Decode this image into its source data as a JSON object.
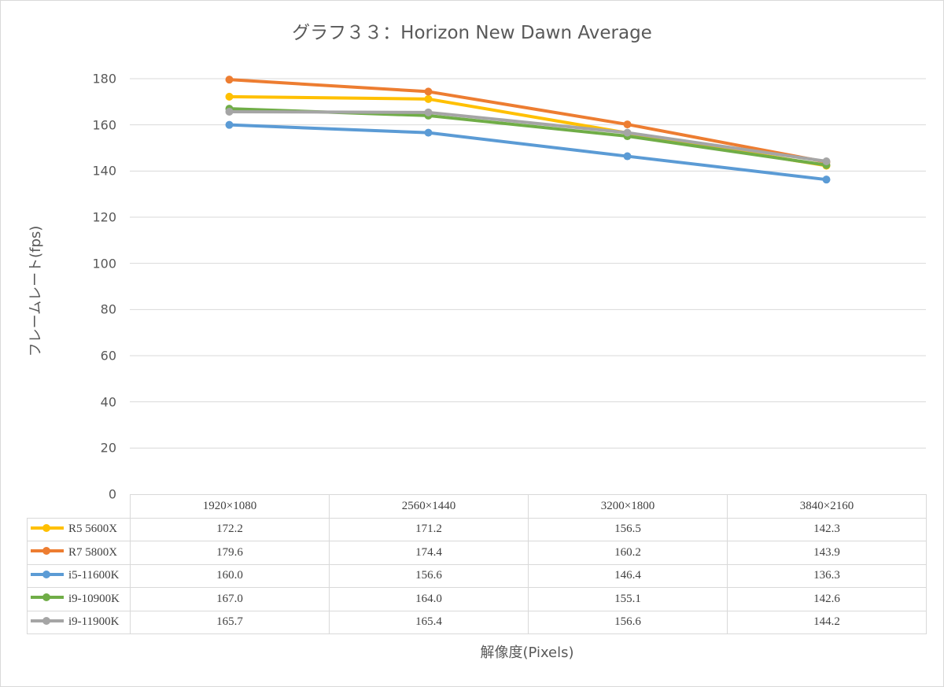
{
  "chart_data": {
    "type": "line",
    "title": "グラフ３３：Horizon New Dawn Average",
    "xlabel": "解像度(Pixels)",
    "ylabel": "フレームレート(fps)",
    "categories": [
      "1920×1080",
      "2560×1440",
      "3200×1800",
      "3840×2160"
    ],
    "ylim": [
      0,
      180
    ],
    "yticks": [
      "0",
      "20",
      "40",
      "60",
      "80",
      "100",
      "120",
      "140",
      "160",
      "180"
    ],
    "grid": true,
    "legend": "data-table",
    "series": [
      {
        "name": "R5 5600X",
        "color": "#FFC000",
        "values": [
          172.2,
          171.2,
          156.5,
          142.3
        ],
        "labels": [
          "172.2",
          "171.2",
          "156.5",
          "142.3"
        ]
      },
      {
        "name": "R7 5800X",
        "color": "#ED7D31",
        "values": [
          179.6,
          174.4,
          160.2,
          143.9
        ],
        "labels": [
          "179.6",
          "174.4",
          "160.2",
          "143.9"
        ]
      },
      {
        "name": "i5-11600K",
        "color": "#5B9BD5",
        "values": [
          160.0,
          156.6,
          146.4,
          136.3
        ],
        "labels": [
          "160.0",
          "156.6",
          "146.4",
          "136.3"
        ]
      },
      {
        "name": "i9-10900K",
        "color": "#70AD47",
        "values": [
          167.0,
          164.0,
          155.1,
          142.6
        ],
        "labels": [
          "167.0",
          "164.0",
          "155.1",
          "142.6"
        ]
      },
      {
        "name": "i9-11900K",
        "color": "#A5A5A5",
        "values": [
          165.7,
          165.4,
          156.6,
          144.2
        ],
        "labels": [
          "165.7",
          "165.4",
          "156.6",
          "144.2"
        ]
      }
    ]
  }
}
